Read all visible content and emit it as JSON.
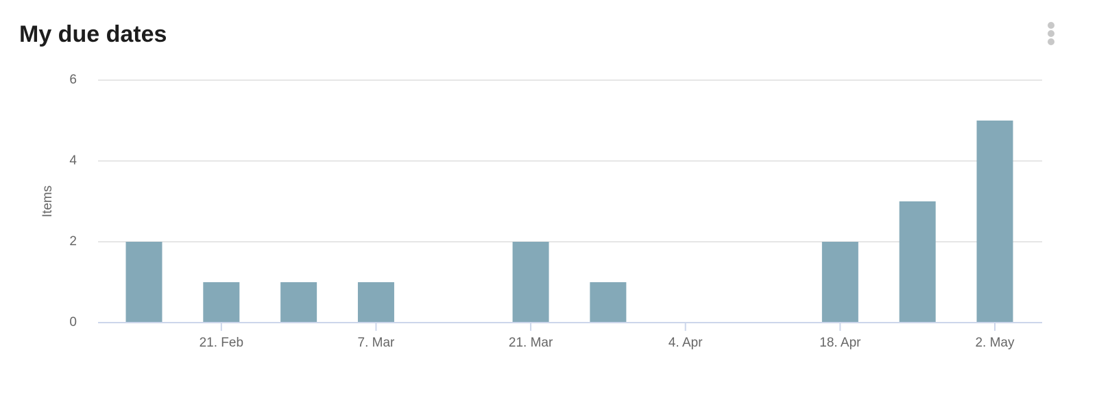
{
  "chart_data": {
    "type": "bar",
    "title": "My due dates",
    "y_label": "Items",
    "categories": [
      null,
      "21. Feb",
      null,
      "7. Mar",
      null,
      "21. Mar",
      null,
      "4. Apr",
      null,
      "18. Apr",
      null,
      "2. May"
    ],
    "values": [
      2,
      1,
      1,
      1,
      0,
      2,
      1,
      0,
      0,
      2,
      3,
      5
    ],
    "color": "#84a9b8",
    "ylim": [
      0,
      6
    ],
    "yticks": [
      0,
      2,
      4,
      6
    ],
    "grid": true
  }
}
